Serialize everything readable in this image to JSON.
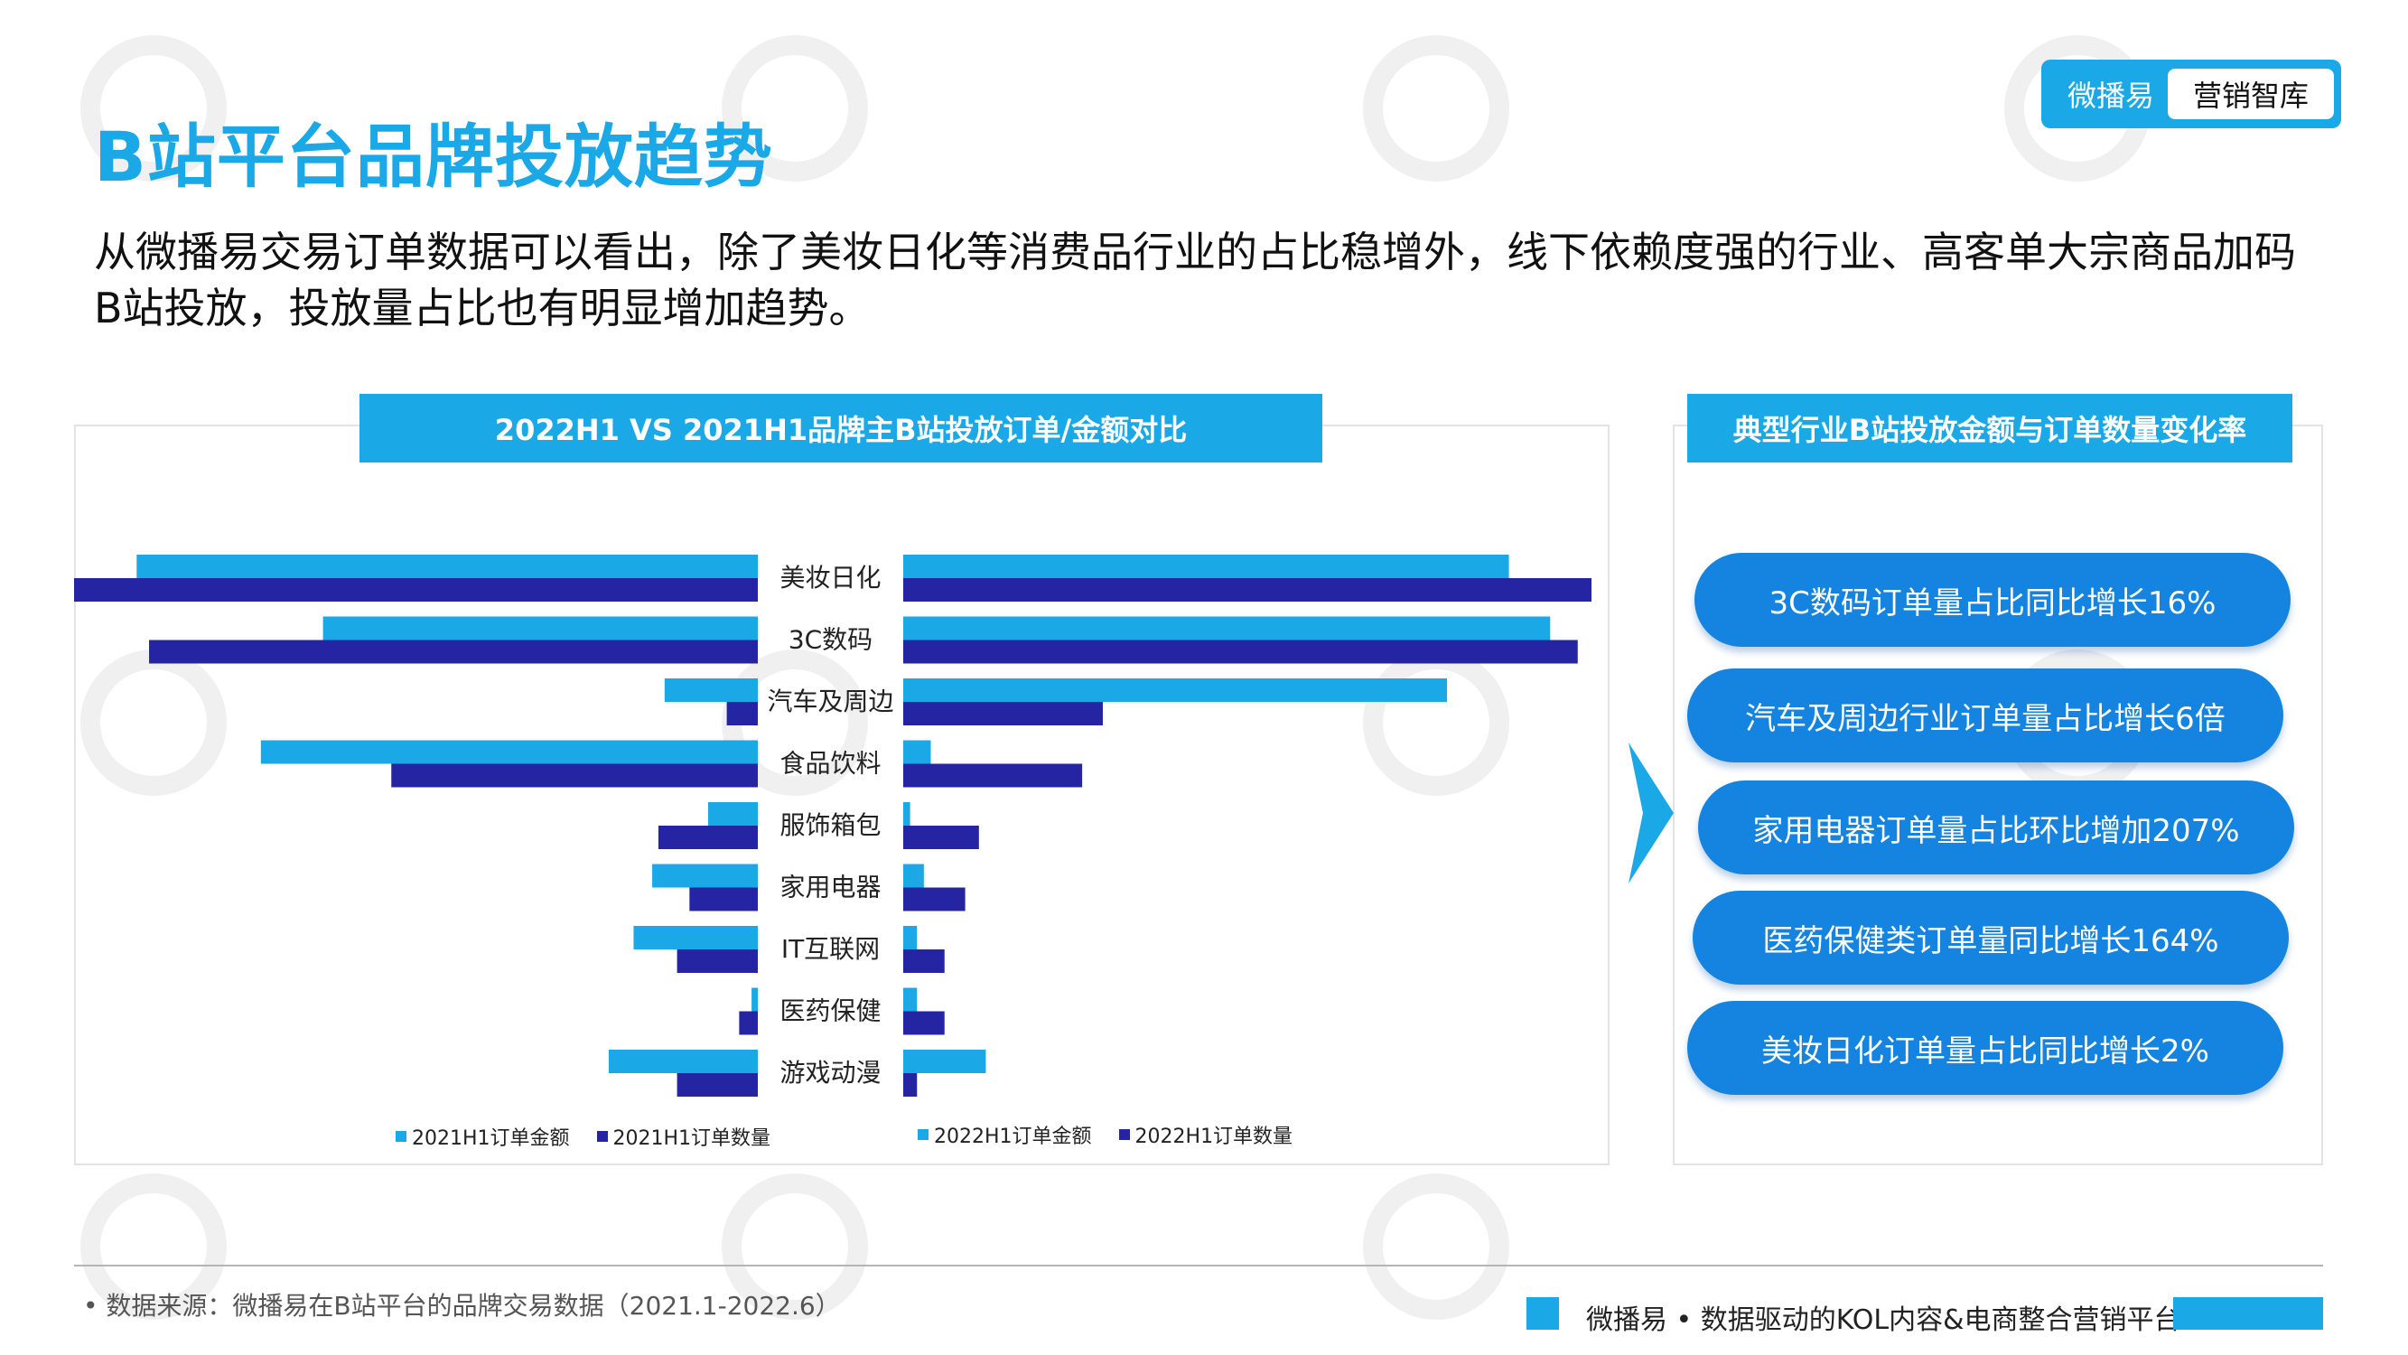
{
  "brand": {
    "name": "微播易",
    "tag": "营销智库"
  },
  "page_title": "B站平台品牌投放趋势",
  "intro": "从微播易交易订单数据可以看出，除了美妆日化等消费品行业的占比稳增外，线下依赖度强的行业、高客单大宗商品加码B站投放，投放量占比也有明显增加趋势。",
  "left_panel": {
    "title": "2022H1 VS 2021H1品牌主B站投放订单/金额对比"
  },
  "right_panel": {
    "title": "典型行业B站投放金额与订单数量变化率",
    "pills": [
      "3C数码订单量占比同比增长16%",
      "汽车及周边行业订单量占比增长6倍",
      "家用电器订单量占比环比增加207%",
      "医药保健类订单量同比增长164%",
      "美妆日化订单量占比同比增长2%"
    ]
  },
  "colors": {
    "light_blue": "#1ba8e6",
    "dark_blue": "#2525a3",
    "pill_blue": "#1584e0"
  },
  "chart_data": {
    "type": "bar",
    "orientation": "horizontal-butterfly",
    "categories": [
      "美妆日化",
      "3C数码",
      "汽车及周边",
      "食品饮料",
      "服饰箱包",
      "家用电器",
      "IT互联网",
      "医药保健",
      "游戏动漫"
    ],
    "left_series": [
      {
        "name": "2021H1订单金额",
        "color": "#1ba8e6",
        "values": [
          100,
          70,
          15,
          80,
          8,
          17,
          20,
          1,
          24
        ]
      },
      {
        "name": "2021H1订单数量",
        "color": "#2525a3",
        "values": [
          114,
          98,
          5,
          59,
          16,
          11,
          13,
          3,
          13
        ]
      }
    ],
    "right_series": [
      {
        "name": "2022H1订单金额",
        "color": "#1ba8e6",
        "values": [
          88,
          94,
          79,
          4,
          1,
          3,
          2,
          2,
          12
        ]
      },
      {
        "name": "2022H1订单数量",
        "color": "#2525a3",
        "values": [
          100,
          98,
          29,
          26,
          11,
          9,
          6,
          6,
          2
        ]
      }
    ],
    "legend": [
      "2021H1订单金额",
      "2021H1订单数量",
      "2022H1订单金额",
      "2022H1订单数量"
    ],
    "legend_position": "bottom",
    "grid": false
  },
  "footer": {
    "source": "•   数据来源：微播易在B站平台的品牌交易数据（2021.1-2022.6）",
    "tagline": "微播易 • 数据驱动的KOL内容&电商整合营销平台"
  }
}
